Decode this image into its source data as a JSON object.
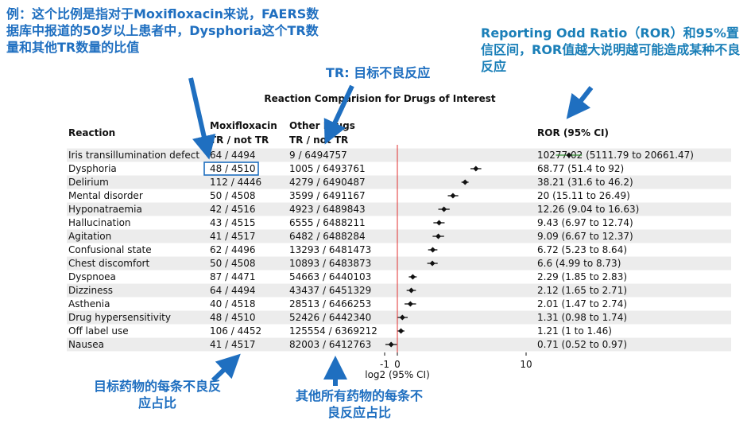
{
  "annotations": {
    "example_note": "例：这个比例是指对于Moxifloxacin来说，FAERS数据库中报道的50岁以上患者中，Dysphoria这个TR数量和其他TR数量的比值",
    "ror_note": "Reporting Odd Ratio（ROR）和95%置信区间，ROR值越大说明越可能造成某种不良反应",
    "tr_note": "TR: 目标不良反应",
    "target_note": "目标药物的每条不良反应占比",
    "others_note": "其他所有药物的每条不良反应占比"
  },
  "colors": {
    "annotation_blue": "#1f6fc0",
    "reference_line": "#e03030",
    "first_ci": "#2e8b2e",
    "row_stripe": "#ececec",
    "highlight_box": "#1f6fc0"
  },
  "chart_data": {
    "type": "forest",
    "title": "Reaction Comparision for Drugs of Interest",
    "columns": {
      "reaction": "Reaction",
      "drug_line1": "Moxifloxacin",
      "drug_line2": "TR / not TR",
      "other_line1": "Other Drugs",
      "other_line2": "TR / not TR",
      "ror": "ROR (95% CI)"
    },
    "xlabel": "log2 (95% CI)",
    "xlim": [
      -1,
      10
    ],
    "xticks": [
      "-1",
      "0",
      "10"
    ],
    "reference_x": 0,
    "highlight_row": 1,
    "rows": [
      {
        "reaction": "Iris transillumination defect",
        "drug": "64 / 4494",
        "other": "9 / 6494757",
        "ror_text": "10277.02 (5111.79 to 20661.47)",
        "log2": 13.33,
        "lo": 12.32,
        "hi": 14.33
      },
      {
        "reaction": "Dysphoria",
        "drug": "48 / 4510",
        "other": "1005 / 6493761",
        "ror_text": "68.77 (51.4 to 92)",
        "log2": 6.1,
        "lo": 5.68,
        "hi": 6.52
      },
      {
        "reaction": "Delirium",
        "drug": "112 / 4446",
        "other": "4279 / 6490487",
        "ror_text": "38.21 (31.6 to 46.2)",
        "log2": 5.26,
        "lo": 4.98,
        "hi": 5.53
      },
      {
        "reaction": "Mental disorder",
        "drug": "50 / 4508",
        "other": "3599 / 6491167",
        "ror_text": "20 (15.11 to 26.49)",
        "log2": 4.32,
        "lo": 3.92,
        "hi": 4.73
      },
      {
        "reaction": "Hyponatraemia",
        "drug": "42 / 4516",
        "other": "4923 / 6489843",
        "ror_text": "12.26 (9.04 to 16.63)",
        "log2": 3.62,
        "lo": 3.18,
        "hi": 4.06
      },
      {
        "reaction": "Hallucination",
        "drug": "43 / 4515",
        "other": "6555 / 6488211",
        "ror_text": "9.43 (6.97 to 12.74)",
        "log2": 3.24,
        "lo": 2.8,
        "hi": 3.67
      },
      {
        "reaction": "Agitation",
        "drug": "41 / 4517",
        "other": "6482 / 6488284",
        "ror_text": "9.09 (6.67 to 12.37)",
        "log2": 3.18,
        "lo": 2.74,
        "hi": 3.63
      },
      {
        "reaction": "Confusional state",
        "drug": "62 / 4496",
        "other": "13293 / 6481473",
        "ror_text": "6.72 (5.23 to 8.64)",
        "log2": 2.75,
        "lo": 2.39,
        "hi": 3.11
      },
      {
        "reaction": "Chest discomfort",
        "drug": "50 / 4508",
        "other": "10893 / 6483873",
        "ror_text": "6.6 (4.99 to 8.73)",
        "log2": 2.72,
        "lo": 2.32,
        "hi": 3.13
      },
      {
        "reaction": "Dyspnoea",
        "drug": "87 / 4471",
        "other": "54663 / 6440103",
        "ror_text": "2.29 (1.85 to 2.83)",
        "log2": 1.2,
        "lo": 0.89,
        "hi": 1.5
      },
      {
        "reaction": "Dizziness",
        "drug": "64 / 4494",
        "other": "43437 / 6451329",
        "ror_text": "2.12 (1.65 to 2.71)",
        "log2": 1.08,
        "lo": 0.72,
        "hi": 1.44
      },
      {
        "reaction": "Asthenia",
        "drug": "40 / 4518",
        "other": "28513 / 6466253",
        "ror_text": "2.01 (1.47 to 2.74)",
        "log2": 1.01,
        "lo": 0.56,
        "hi": 1.45
      },
      {
        "reaction": "Drug hypersensitivity",
        "drug": "48 / 4510",
        "other": "52426 / 6442340",
        "ror_text": "1.31 (0.98 to 1.74)",
        "log2": 0.39,
        "lo": -0.03,
        "hi": 0.8
      },
      {
        "reaction": "Off label use",
        "drug": "106 / 4452",
        "other": "125554 / 6369212",
        "ror_text": "1.21 (1 to 1.46)",
        "log2": 0.28,
        "lo": 0.0,
        "hi": 0.55
      },
      {
        "reaction": "Nausea",
        "drug": "41 / 4517",
        "other": "82003 / 6412763",
        "ror_text": "0.71 (0.52 to 0.97)",
        "log2": -0.49,
        "lo": -0.94,
        "hi": -0.04
      }
    ]
  }
}
